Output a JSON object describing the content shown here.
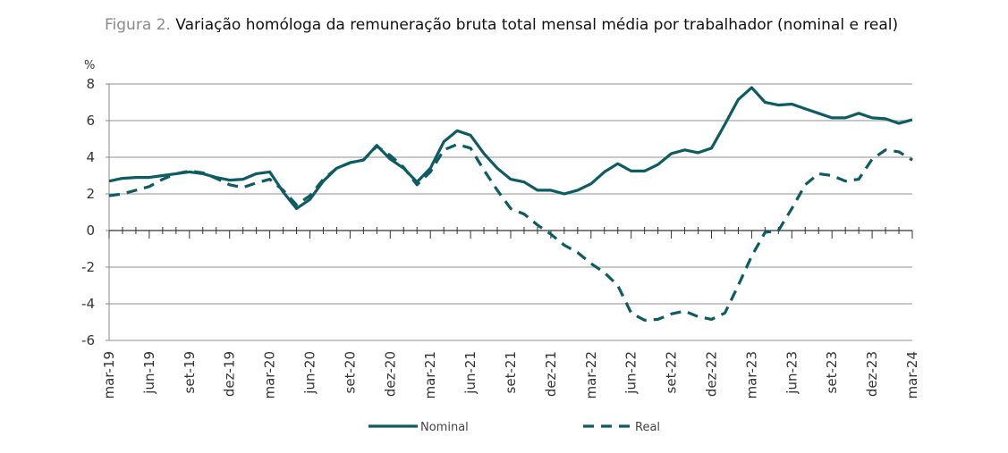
{
  "title_prefix": "Figura 2.",
  "title": "Variação homóloga da remuneração bruta total mensal média por trabalhador (nominal e real)",
  "chart_data": {
    "type": "line",
    "title": "Variação homóloga da remuneração bruta total mensal média por trabalhador (nominal e real)",
    "ylabel": "%",
    "ylim": [
      -6,
      8
    ],
    "yticks": [
      -6,
      -4,
      -2,
      0,
      2,
      4,
      6,
      8
    ],
    "grid": true,
    "legend": "bottom",
    "color": "#0e5c63",
    "x": [
      "mar-19",
      "abr-19",
      "mai-19",
      "jun-19",
      "jul-19",
      "ago-19",
      "set-19",
      "out-19",
      "nov-19",
      "dez-19",
      "jan-20",
      "fev-20",
      "mar-20",
      "abr-20",
      "mai-20",
      "jun-20",
      "jul-20",
      "ago-20",
      "set-20",
      "out-20",
      "nov-20",
      "dez-20",
      "jan-21",
      "fev-21",
      "mar-21",
      "abr-21",
      "mai-21",
      "jun-21",
      "jul-21",
      "ago-21",
      "set-21",
      "out-21",
      "nov-21",
      "dez-21",
      "jan-22",
      "fev-22",
      "mar-22",
      "abr-22",
      "mai-22",
      "jun-22",
      "jul-22",
      "ago-22",
      "set-22",
      "out-22",
      "nov-22",
      "dez-22",
      "jan-23",
      "fev-23",
      "mar-23",
      "abr-23",
      "mai-23",
      "jun-23",
      "jul-23",
      "ago-23",
      "set-23",
      "out-23",
      "nov-23",
      "dez-23",
      "jan-24",
      "fev-24",
      "mar-24"
    ],
    "xtick_labels": [
      "mar-19",
      "jun-19",
      "set-19",
      "dez-19",
      "mar-20",
      "jun-20",
      "set-20",
      "dez-20",
      "mar-21",
      "jun-21",
      "set-21",
      "dez-21",
      "mar-22",
      "jun-22",
      "set-22",
      "dez-22",
      "mar-23",
      "jun-23",
      "set-23",
      "dez-23",
      "mar-24"
    ],
    "series": [
      {
        "name": "Nominal",
        "style": "solid",
        "values": [
          2.7,
          2.85,
          2.9,
          2.9,
          3.0,
          3.1,
          3.2,
          3.1,
          2.9,
          2.75,
          2.8,
          3.1,
          3.2,
          2.1,
          1.2,
          1.7,
          2.7,
          3.4,
          3.7,
          3.85,
          4.65,
          3.9,
          3.4,
          2.65,
          3.4,
          4.85,
          5.45,
          5.2,
          4.2,
          3.4,
          2.8,
          2.65,
          2.2,
          2.2,
          2.0,
          2.2,
          2.55,
          3.2,
          3.65,
          3.25,
          3.25,
          3.6,
          4.2,
          4.4,
          4.25,
          4.5,
          5.8,
          7.15,
          7.8,
          7.0,
          6.85,
          6.9,
          6.65,
          6.4,
          6.15,
          6.15,
          6.4,
          6.15,
          6.1,
          5.85,
          6.05
        ]
      },
      {
        "name": "Real",
        "style": "dashed",
        "values": [
          1.9,
          2.0,
          2.2,
          2.4,
          2.8,
          3.1,
          3.25,
          3.15,
          2.85,
          2.5,
          2.35,
          2.6,
          2.8,
          2.2,
          1.4,
          1.9,
          2.8,
          3.4,
          3.7,
          3.85,
          4.6,
          4.1,
          3.45,
          2.5,
          3.2,
          4.4,
          4.7,
          4.5,
          3.3,
          2.2,
          1.2,
          0.9,
          0.3,
          -0.2,
          -0.8,
          -1.2,
          -1.8,
          -2.3,
          -3.0,
          -4.5,
          -4.9,
          -4.85,
          -4.55,
          -4.4,
          -4.7,
          -4.85,
          -4.5,
          -3.0,
          -1.4,
          -0.1,
          0.0,
          1.2,
          2.5,
          3.1,
          3.0,
          2.7,
          2.8,
          3.9,
          4.4,
          4.3,
          3.85
        ]
      }
    ]
  }
}
